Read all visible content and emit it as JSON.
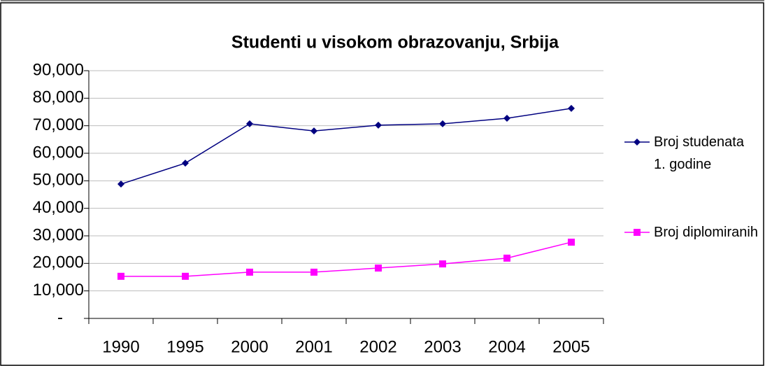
{
  "chart_data": {
    "type": "line",
    "title": "Studenti u visokom obrazovanju, Srbija",
    "categories": [
      "1990",
      "1995",
      "2000",
      "2001",
      "2002",
      "2003",
      "2004",
      "2005"
    ],
    "series": [
      {
        "name": "Broj studenata 1. godine",
        "color": "#000080",
        "marker": "diamond",
        "values": [
          48800,
          56400,
          70700,
          68100,
          70200,
          70700,
          72700,
          76300
        ]
      },
      {
        "name": "Broj diplomiranih",
        "color": "#ff00ff",
        "marker": "square",
        "values": [
          15300,
          15300,
          16800,
          16800,
          18300,
          19800,
          21900,
          27700
        ]
      }
    ],
    "ylim": [
      0,
      90000
    ],
    "yticks": [
      {
        "value": 0,
        "label": "-"
      },
      {
        "value": 10000,
        "label": "10,000"
      },
      {
        "value": 20000,
        "label": "20,000"
      },
      {
        "value": 30000,
        "label": "30,000"
      },
      {
        "value": 40000,
        "label": "40,000"
      },
      {
        "value": 50000,
        "label": "50,000"
      },
      {
        "value": 60000,
        "label": "60,000"
      },
      {
        "value": 70000,
        "label": "70,000"
      },
      {
        "value": 80000,
        "label": "80,000"
      },
      {
        "value": 90000,
        "label": "90,000"
      }
    ],
    "grid": true,
    "legend": "right"
  }
}
